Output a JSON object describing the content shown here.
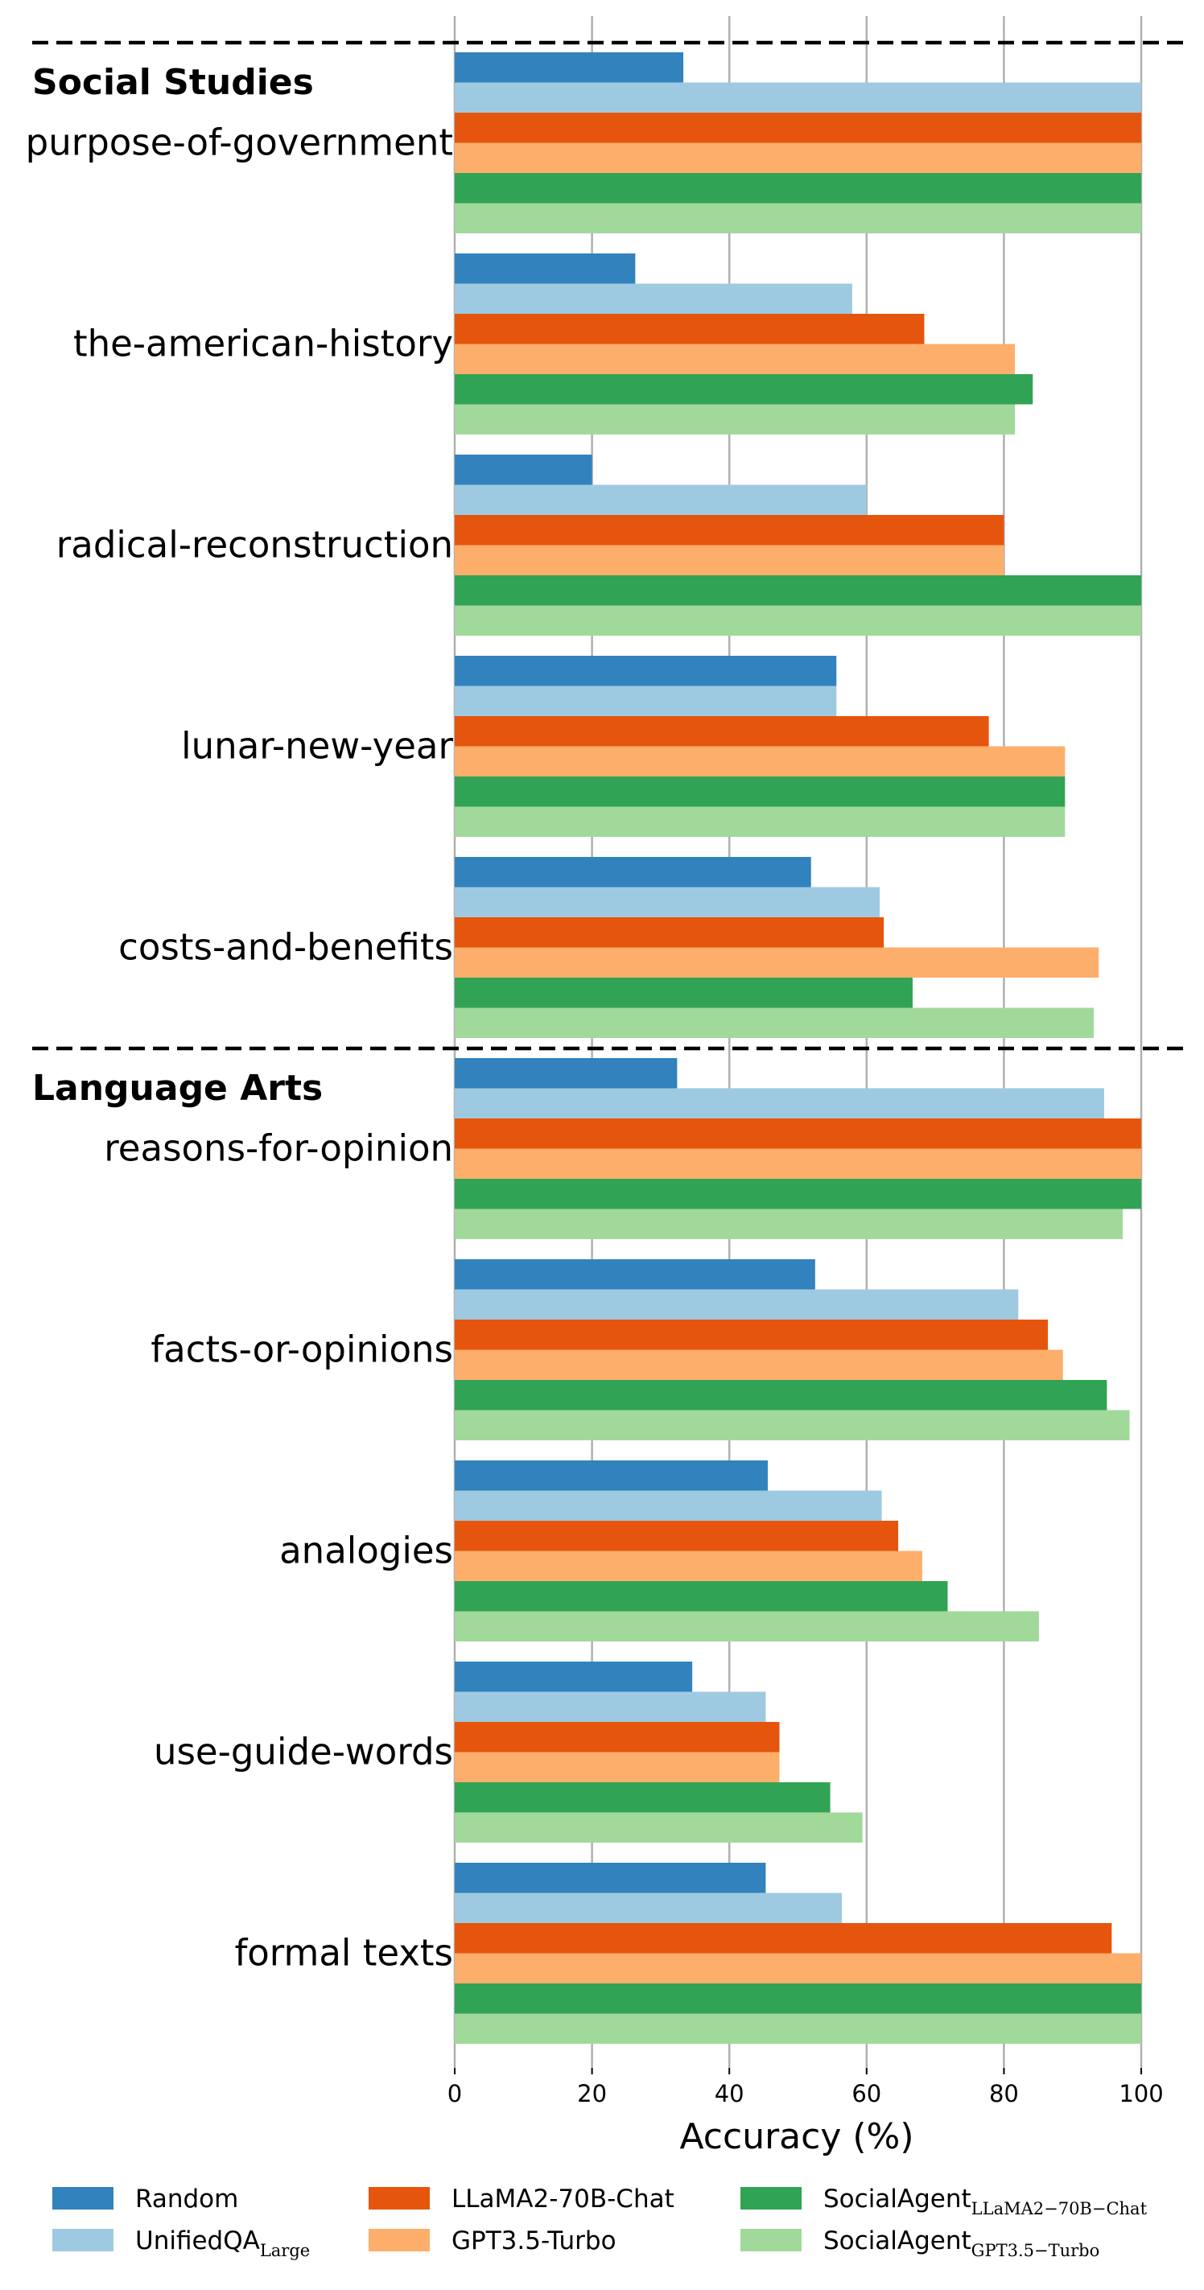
{
  "chart_data": {
    "type": "bar",
    "orientation": "horizontal",
    "xlabel": "Accuracy (%)",
    "xlim": [
      0,
      100
    ],
    "xticks": [
      "0",
      "20",
      "40",
      "60",
      "80",
      "100"
    ],
    "grid": "vertical",
    "legend_position": "bottom",
    "sections": [
      {
        "title": "Social Studies",
        "categories": [
          "purpose-of-government",
          "the-american-history",
          "radical-reconstruction",
          "lunar-new-year",
          "costs-and-benefits"
        ]
      },
      {
        "title": "Language Arts",
        "categories": [
          "reasons-for-opinion",
          "facts-or-opinions",
          "analogies",
          "use-guide-words",
          "formal texts"
        ]
      }
    ],
    "categories": [
      "purpose-of-government",
      "the-american-history",
      "radical-reconstruction",
      "lunar-new-year",
      "costs-and-benefits",
      "reasons-for-opinion",
      "facts-or-opinions",
      "analogies",
      "use-guide-words",
      "formal texts"
    ],
    "series": [
      {
        "name": "Random",
        "color": "#3182bd",
        "values": [
          33.3,
          26.3,
          20.0,
          55.6,
          51.9,
          32.4,
          52.5,
          45.6,
          34.6,
          45.3
        ]
      },
      {
        "name": "UnifiedQA",
        "name_sub": "Large",
        "color": "#9ecae1",
        "values": [
          100,
          57.9,
          60.0,
          55.6,
          61.9,
          94.6,
          82.1,
          62.2,
          45.3,
          56.4
        ]
      },
      {
        "name": "LLaMA2-70B-Chat",
        "color": "#e6550d",
        "values": [
          100,
          68.4,
          80.0,
          77.8,
          62.5,
          100,
          86.4,
          64.6,
          47.3,
          95.7
        ]
      },
      {
        "name": "GPT3.5-Turbo",
        "color": "#fdae6b",
        "values": [
          100,
          81.6,
          80.0,
          88.9,
          93.8,
          100,
          88.6,
          68.1,
          47.3,
          100
        ]
      },
      {
        "name": "SocialAgent",
        "name_sub": "LLaMA2−70B−Chat",
        "color": "#31a354",
        "values": [
          100,
          84.2,
          100,
          88.9,
          66.7,
          100,
          95.0,
          71.8,
          54.7,
          100
        ]
      },
      {
        "name": "SocialAgent",
        "name_sub": "GPT3.5−Turbo",
        "color": "#a1d99b",
        "values": [
          100,
          81.6,
          100,
          88.9,
          93.1,
          97.3,
          98.3,
          85.1,
          59.4,
          100
        ]
      }
    ]
  }
}
